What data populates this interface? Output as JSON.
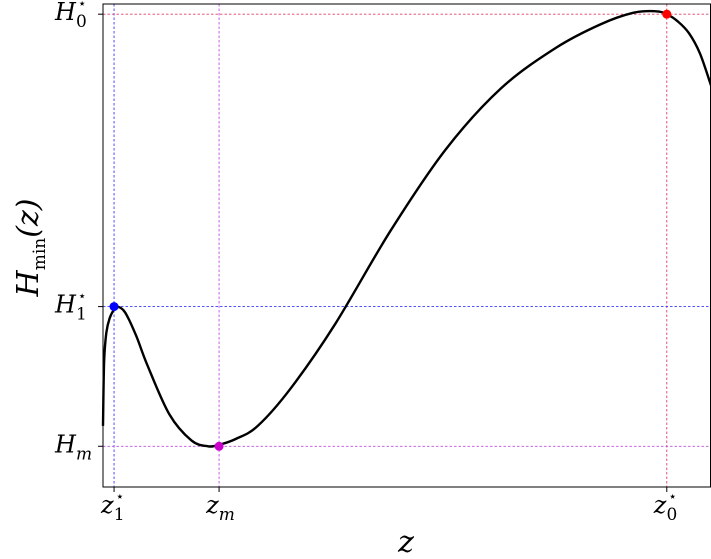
{
  "chart_data": {
    "type": "line",
    "xlabel": "z",
    "ylabel": {
      "main": "H",
      "sub": "min",
      "arg": "(z)"
    },
    "xlim": [
      0.9,
      6.4
    ],
    "ylim": [
      0.82,
      2.48
    ],
    "grid": false,
    "series": [
      {
        "color": "#000000",
        "x": [
          0.9,
          0.91,
          0.93,
          0.96,
          1.0,
          1.03,
          1.1,
          1.2,
          1.3,
          1.5,
          1.7,
          1.85,
          1.95,
          2.1,
          2.3,
          2.6,
          3.0,
          3.5,
          4.0,
          4.5,
          5.0,
          5.4,
          5.7,
          5.9,
          6.0,
          6.1,
          6.2,
          6.3,
          6.4
        ],
        "y": [
          1.03,
          1.25,
          1.35,
          1.4,
          1.43,
          1.44,
          1.42,
          1.34,
          1.24,
          1.07,
          0.98,
          0.96,
          0.965,
          0.985,
          1.03,
          1.16,
          1.38,
          1.7,
          1.98,
          2.19,
          2.33,
          2.41,
          2.45,
          2.455,
          2.445,
          2.42,
          2.38,
          2.31,
          2.2
        ]
      }
    ],
    "reference_lines": [
      {
        "axis": "x",
        "value": 1.0,
        "color": "#3a3aff"
      },
      {
        "axis": "x",
        "value": 1.95,
        "color": "#c050e0"
      },
      {
        "axis": "x",
        "value": 6.0,
        "color": "#e0406a"
      },
      {
        "axis": "y",
        "value": 2.445,
        "color": "#e0406a"
      },
      {
        "axis": "y",
        "value": 1.44,
        "color": "#3a3aff"
      },
      {
        "axis": "y",
        "value": 0.96,
        "color": "#c050e0"
      }
    ],
    "markers": [
      {
        "x": 1.0,
        "y": 1.44,
        "color": "#0000ff"
      },
      {
        "x": 1.95,
        "y": 0.96,
        "color": "#cc00cc"
      },
      {
        "x": 6.0,
        "y": 2.445,
        "color": "#ff0000"
      }
    ],
    "xticks": [
      {
        "value": 1.0,
        "main": "z",
        "sub": "1",
        "sup": "⋆"
      },
      {
        "value": 1.95,
        "main": "z",
        "sub": "m",
        "sup": ""
      },
      {
        "value": 6.0,
        "main": "z",
        "sub": "0",
        "sup": "⋆"
      }
    ],
    "yticks": [
      {
        "value": 2.445,
        "main": "H",
        "sub": "0",
        "sup": "⋆"
      },
      {
        "value": 1.44,
        "main": "H",
        "sub": "1",
        "sup": "⋆"
      },
      {
        "value": 0.96,
        "main": "H",
        "sub": "m",
        "sup": ""
      }
    ]
  }
}
